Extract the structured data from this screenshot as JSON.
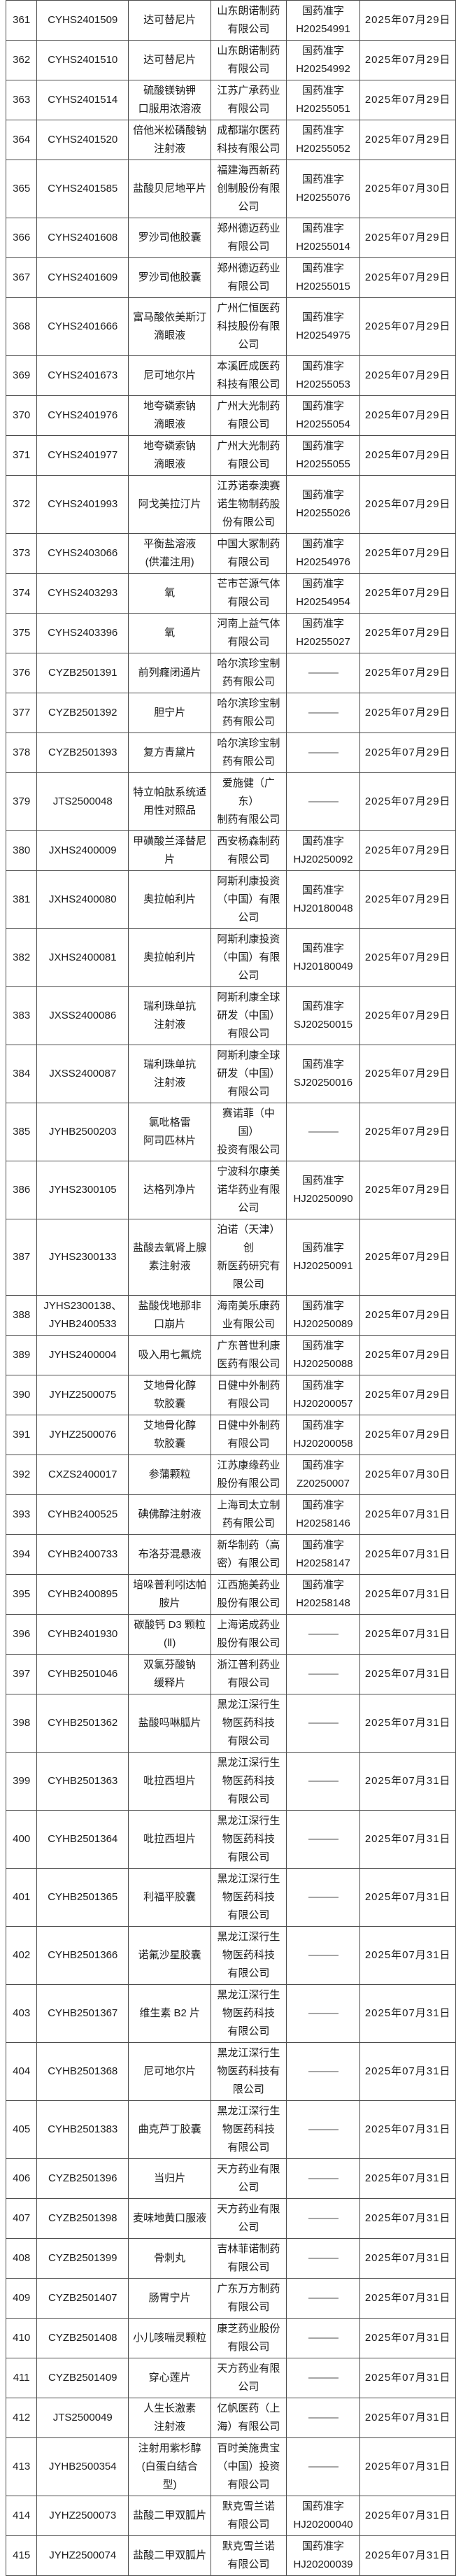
{
  "colors": {
    "background": "#ffffff",
    "border": "#4c4c4c",
    "text": "#1c1c1c"
  },
  "dash_placeholder": "———",
  "table": {
    "rows": [
      {
        "no": "361",
        "acceptance_no": "CYHS2401509",
        "drug_name": "达可替尼片",
        "company": "山东朗诺制药\n有限公司",
        "approval_no": "国药准字\nH20254991",
        "approval_date": "2025年07月29日"
      },
      {
        "no": "362",
        "acceptance_no": "CYHS2401510",
        "drug_name": "达可替尼片",
        "company": "山东朗诺制药\n有限公司",
        "approval_no": "国药准字\nH20254992",
        "approval_date": "2025年07月29日"
      },
      {
        "no": "363",
        "acceptance_no": "CYHS2401514",
        "drug_name": "硫酸镁钠钾\n口服用浓溶液",
        "company": "江苏广承药业\n有限公司",
        "approval_no": "国药准字\nH20255051",
        "approval_date": "2025年07月29日"
      },
      {
        "no": "364",
        "acceptance_no": "CYHS2401520",
        "drug_name": "倍他米松磷酸钠\n注射液",
        "company": "成都瑞尔医药\n科技有限公司",
        "approval_no": "国药准字\nH20255052",
        "approval_date": "2025年07月29日"
      },
      {
        "no": "365",
        "acceptance_no": "CYHS2401585",
        "drug_name": "盐酸贝尼地平片",
        "company": "福建海西新药\n创制股份有限\n公司",
        "approval_no": "国药准字\nH20255076",
        "approval_date": "2025年07月30日"
      },
      {
        "no": "366",
        "acceptance_no": "CYHS2401608",
        "drug_name": "罗沙司他胶囊",
        "company": "郑州德迈药业\n有限公司",
        "approval_no": "国药准字\nH20255014",
        "approval_date": "2025年07月29日"
      },
      {
        "no": "367",
        "acceptance_no": "CYHS2401609",
        "drug_name": "罗沙司他胶囊",
        "company": "郑州德迈药业\n有限公司",
        "approval_no": "国药准字\nH20255015",
        "approval_date": "2025年07月29日"
      },
      {
        "no": "368",
        "acceptance_no": "CYHS2401666",
        "drug_name": "富马酸依美斯汀\n滴眼液",
        "company": "广州仁恒医药\n科技股份有限\n公司",
        "approval_no": "国药准字\nH20254975",
        "approval_date": "2025年07月29日"
      },
      {
        "no": "369",
        "acceptance_no": "CYHS2401673",
        "drug_name": "尼可地尔片",
        "company": "本溪匠成医药\n科技有限公司",
        "approval_no": "国药准字\nH20255053",
        "approval_date": "2025年07月29日"
      },
      {
        "no": "370",
        "acceptance_no": "CYHS2401976",
        "drug_name": "地夸磷索钠\n滴眼液",
        "company": "广州大光制药\n有限公司",
        "approval_no": "国药准字\nH20255054",
        "approval_date": "2025年07月29日"
      },
      {
        "no": "371",
        "acceptance_no": "CYHS2401977",
        "drug_name": "地夸磷索钠\n滴眼液",
        "company": "广州大光制药\n有限公司",
        "approval_no": "国药准字\nH20255055",
        "approval_date": "2025年07月29日"
      },
      {
        "no": "372",
        "acceptance_no": "CYHS2401993",
        "drug_name": "阿戈美拉汀片",
        "company": "江苏诺泰澳赛\n诺生物制药股\n份有限公司",
        "approval_no": "国药准字\nH20255026",
        "approval_date": "2025年07月29日"
      },
      {
        "no": "373",
        "acceptance_no": "CYHS2403066",
        "drug_name": "平衡盐溶液\n(供灌注用)",
        "company": "中国大冢制药\n有限公司",
        "approval_no": "国药准字\nH20254976",
        "approval_date": "2025年07月29日"
      },
      {
        "no": "374",
        "acceptance_no": "CYHS2403293",
        "drug_name": "氧",
        "company": "芒市芒源气体\n有限公司",
        "approval_no": "国药准字\nH20254954",
        "approval_date": "2025年07月29日"
      },
      {
        "no": "375",
        "acceptance_no": "CYHS2403396",
        "drug_name": "氧",
        "company": "河南上益气体\n有限公司",
        "approval_no": "国药准字\nH20255027",
        "approval_date": "2025年07月29日"
      },
      {
        "no": "376",
        "acceptance_no": "CYZB2501391",
        "drug_name": "前列癃闭通片",
        "company": "哈尔滨珍宝制\n药有限公司",
        "approval_no": "———",
        "approval_date": "2025年07月29日"
      },
      {
        "no": "377",
        "acceptance_no": "CYZB2501392",
        "drug_name": "胆宁片",
        "company": "哈尔滨珍宝制\n药有限公司",
        "approval_no": "———",
        "approval_date": "2025年07月29日"
      },
      {
        "no": "378",
        "acceptance_no": "CYZB2501393",
        "drug_name": "复方青黛片",
        "company": "哈尔滨珍宝制\n药有限公司",
        "approval_no": "———",
        "approval_date": "2025年07月29日"
      },
      {
        "no": "379",
        "acceptance_no": "JTS2500048",
        "drug_name": "特立帕肽系统适\n用性对照品",
        "company": "爱施健（广东）\n制药有限公司",
        "approval_no": "———",
        "approval_date": "2025年07月29日"
      },
      {
        "no": "380",
        "acceptance_no": "JXHS2400009",
        "drug_name": "甲磺酸兰泽替尼\n片",
        "company": "西安杨森制药\n有限公司",
        "approval_no": "国药准字\nHJ20250092",
        "approval_date": "2025年07月29日"
      },
      {
        "no": "381",
        "acceptance_no": "JXHS2400080",
        "drug_name": "奥拉帕利片",
        "company": "阿斯利康投资\n（中国）有限\n公司",
        "approval_no": "国药准字\nHJ20180048",
        "approval_date": "2025年07月29日"
      },
      {
        "no": "382",
        "acceptance_no": "JXHS2400081",
        "drug_name": "奥拉帕利片",
        "company": "阿斯利康投资\n（中国）有限\n公司",
        "approval_no": "国药准字\nHJ20180049",
        "approval_date": "2025年07月29日"
      },
      {
        "no": "383",
        "acceptance_no": "JXSS2400086",
        "drug_name": "瑞利珠单抗\n注射液",
        "company": "阿斯利康全球\n研发（中国）\n有限公司",
        "approval_no": "国药准字\nSJ20250015",
        "approval_date": "2025年07月29日"
      },
      {
        "no": "384",
        "acceptance_no": "JXSS2400087",
        "drug_name": "瑞利珠单抗\n注射液",
        "company": "阿斯利康全球\n研发（中国）\n有限公司",
        "approval_no": "国药准字\nSJ20250016",
        "approval_date": "2025年07月29日"
      },
      {
        "no": "385",
        "acceptance_no": "JYHB2500203",
        "drug_name": "氯吡格雷\n阿司匹林片",
        "company": "赛诺菲（中国）\n投资有限公司",
        "approval_no": "———",
        "approval_date": "2025年07月29日"
      },
      {
        "no": "386",
        "acceptance_no": "JYHS2300105",
        "drug_name": "达格列净片",
        "company": "宁波科尔康美\n诺华药业有限\n公司",
        "approval_no": "国药准字\nHJ20250090",
        "approval_date": "2025年07月29日"
      },
      {
        "no": "387",
        "acceptance_no": "JYHS2300133",
        "drug_name": "盐酸去氧肾上腺\n素注射液",
        "company": "泊诺（天津）创\n新医药研究有\n限公司",
        "approval_no": "国药准字\nHJ20250091",
        "approval_date": "2025年07月29日"
      },
      {
        "no": "388",
        "acceptance_no": "JYHS2300138、\nJYHB2400533",
        "drug_name": "盐酸伐地那非\n口崩片",
        "company": "海南美乐康药\n业有限公司",
        "approval_no": "国药准字\nHJ20250089",
        "approval_date": "2025年07月29日"
      },
      {
        "no": "389",
        "acceptance_no": "JYHS2400004",
        "drug_name": "吸入用七氟烷",
        "company": "广东普世利康\n医药有限公司",
        "approval_no": "国药准字\nHJ20250088",
        "approval_date": "2025年07月29日"
      },
      {
        "no": "390",
        "acceptance_no": "JYHZ2500075",
        "drug_name": "艾地骨化醇\n软胶囊",
        "company": "日健中外制药\n有限公司",
        "approval_no": "国药准字\nHJ20200057",
        "approval_date": "2025年07月29日"
      },
      {
        "no": "391",
        "acceptance_no": "JYHZ2500076",
        "drug_name": "艾地骨化醇\n软胶囊",
        "company": "日健中外制药\n有限公司",
        "approval_no": "国药准字\nHJ20200058",
        "approval_date": "2025年07月29日"
      },
      {
        "no": "392",
        "acceptance_no": "CXZS2400017",
        "drug_name": "参蒲颗粒",
        "company": "江苏康缘药业\n股份有限公司",
        "approval_no": "国药准字\nZ20250007",
        "approval_date": "2025年07月30日"
      },
      {
        "no": "393",
        "acceptance_no": "CYHB2400525",
        "drug_name": "碘佛醇注射液",
        "company": "上海司太立制\n药有限公司",
        "approval_no": "国药准字\nH20258146",
        "approval_date": "2025年07月31日"
      },
      {
        "no": "394",
        "acceptance_no": "CYHB2400733",
        "drug_name": "布洛芬混悬液",
        "company": "新华制药（高\n密）有限公司",
        "approval_no": "国药准字\nH20258147",
        "approval_date": "2025年07月31日"
      },
      {
        "no": "395",
        "acceptance_no": "CYHB2400895",
        "drug_name": "培哚普利吲达帕\n胺片",
        "company": "江西施美药业\n股份有限公司",
        "approval_no": "国药准字\nH20258148",
        "approval_date": "2025年07月31日"
      },
      {
        "no": "396",
        "acceptance_no": "CYHB2401930",
        "drug_name": "碳酸钙 D3 颗粒\n(Ⅱ)",
        "company": "上海诺成药业\n股份有限公司",
        "approval_no": "———",
        "approval_date": "2025年07月31日"
      },
      {
        "no": "397",
        "acceptance_no": "CYHB2501046",
        "drug_name": "双氯芬酸钠\n缓释片",
        "company": "浙江普利药业\n有限公司",
        "approval_no": "———",
        "approval_date": "2025年07月31日"
      },
      {
        "no": "398",
        "acceptance_no": "CYHB2501362",
        "drug_name": "盐酸吗啉胍片",
        "company": "黑龙江深行生\n物医药科技\n有限公司",
        "approval_no": "———",
        "approval_date": "2025年07月31日"
      },
      {
        "no": "399",
        "acceptance_no": "CYHB2501363",
        "drug_name": "吡拉西坦片",
        "company": "黑龙江深行生\n物医药科技\n有限公司",
        "approval_no": "———",
        "approval_date": "2025年07月31日"
      },
      {
        "no": "400",
        "acceptance_no": "CYHB2501364",
        "drug_name": "吡拉西坦片",
        "company": "黑龙江深行生\n物医药科技\n有限公司",
        "approval_no": "———",
        "approval_date": "2025年07月31日"
      },
      {
        "no": "401",
        "acceptance_no": "CYHB2501365",
        "drug_name": "利福平胶囊",
        "company": "黑龙江深行生\n物医药科技\n有限公司",
        "approval_no": "———",
        "approval_date": "2025年07月31日"
      },
      {
        "no": "402",
        "acceptance_no": "CYHB2501366",
        "drug_name": "诺氟沙星胶囊",
        "company": "黑龙江深行生\n物医药科技\n有限公司",
        "approval_no": "———",
        "approval_date": "2025年07月31日"
      },
      {
        "no": "403",
        "acceptance_no": "CYHB2501367",
        "drug_name": "维生素 B2 片",
        "company": "黑龙江深行生\n物医药科技\n有限公司",
        "approval_no": "———",
        "approval_date": "2025年07月31日"
      },
      {
        "no": "404",
        "acceptance_no": "CYHB2501368",
        "drug_name": "尼可地尔片",
        "company": "黑龙江深行生\n物医药科技有\n限公司",
        "approval_no": "———",
        "approval_date": "2025年07月31日"
      },
      {
        "no": "405",
        "acceptance_no": "CYHB2501383",
        "drug_name": "曲克芦丁胶囊",
        "company": "黑龙江深行生\n物医药科技\n有限公司",
        "approval_no": "———",
        "approval_date": "2025年07月31日"
      },
      {
        "no": "406",
        "acceptance_no": "CYZB2501396",
        "drug_name": "当归片",
        "company": "天方药业有限\n公司",
        "approval_no": "———",
        "approval_date": "2025年07月31日"
      },
      {
        "no": "407",
        "acceptance_no": "CYZB2501398",
        "drug_name": "麦味地黄口服液",
        "company": "天方药业有限\n公司",
        "approval_no": "———",
        "approval_date": "2025年07月31日"
      },
      {
        "no": "408",
        "acceptance_no": "CYZB2501399",
        "drug_name": "骨刺丸",
        "company": "吉林菲诺制药\n有限公司",
        "approval_no": "———",
        "approval_date": "2025年07月31日"
      },
      {
        "no": "409",
        "acceptance_no": "CYZB2501407",
        "drug_name": "肠胃宁片",
        "company": "广东万方制药\n有限公司",
        "approval_no": "———",
        "approval_date": "2025年07月31日"
      },
      {
        "no": "410",
        "acceptance_no": "CYZB2501408",
        "drug_name": "小儿咳喘灵颗粒",
        "company": "康芝药业股份\n有限公司",
        "approval_no": "———",
        "approval_date": "2025年07月31日"
      },
      {
        "no": "411",
        "acceptance_no": "CYZB2501409",
        "drug_name": "穿心莲片",
        "company": "天方药业有限\n公司",
        "approval_no": "———",
        "approval_date": "2025年07月31日"
      },
      {
        "no": "412",
        "acceptance_no": "JTS2500049",
        "drug_name": "人生长激素\n注射液",
        "company": "亿帆医药（上\n海）有限公司",
        "approval_no": "———",
        "approval_date": "2025年07月31日"
      },
      {
        "no": "413",
        "acceptance_no": "JYHB2500354",
        "drug_name": "注射用紫杉醇\n(白蛋白结合\n型)",
        "company": "百时美施贵宝\n（中国）投资\n有限公司",
        "approval_no": "———",
        "approval_date": "2025年07月31日"
      },
      {
        "no": "414",
        "acceptance_no": "JYHZ2500073",
        "drug_name": "盐酸二甲双胍片",
        "company": "默克雪兰诺\n有限公司",
        "approval_no": "国药准字\nHJ20200040",
        "approval_date": "2025年07月31日"
      },
      {
        "no": "415",
        "acceptance_no": "JYHZ2500074",
        "drug_name": "盐酸二甲双胍片",
        "company": "默克雪兰诺\n有限公司",
        "approval_no": "国药准字\nHJ20200039",
        "approval_date": "2025年07月31日"
      }
    ]
  }
}
